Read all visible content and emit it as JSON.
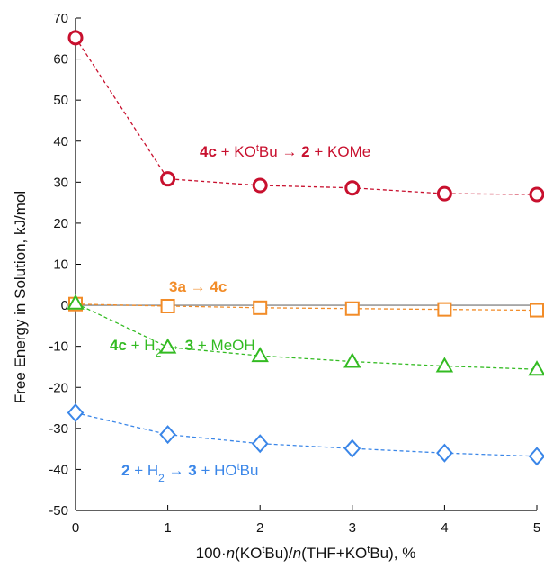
{
  "chart_data": {
    "type": "line",
    "xlabel": "100·n(KOᵗBu)/n(THF+KOᵗBu), %",
    "ylabel": "Free Energy in Solution, kJ/mol",
    "xlim": [
      0,
      5
    ],
    "ylim": [
      -50,
      70
    ],
    "x_ticks": [
      "0",
      "1",
      "2",
      "3",
      "4",
      "5"
    ],
    "y_ticks": [
      "70",
      "60",
      "50",
      "40",
      "30",
      "20",
      "10",
      "0",
      "-10",
      "-20",
      "-30",
      "-40",
      "-50"
    ],
    "grid": false,
    "x": [
      0,
      1,
      2,
      3,
      4,
      5
    ],
    "series": [
      {
        "name": "4c + KOᵗBu → 2 + KOMe",
        "color": "#c8102e",
        "marker": "circle",
        "values": [
          65.2,
          30.8,
          29.2,
          28.6,
          27.2,
          27.0
        ]
      },
      {
        "name": "3a → 4c",
        "color": "#f28c28",
        "marker": "square",
        "values": [
          0.3,
          -0.2,
          -0.6,
          -0.8,
          -1.0,
          -1.2
        ]
      },
      {
        "name": "4c + H₂ → 3 + MeOH",
        "color": "#33bb22",
        "marker": "triangle",
        "values": [
          0.5,
          -10.2,
          -12.3,
          -13.7,
          -14.8,
          -15.6
        ]
      },
      {
        "name": "2 + H₂ → 3 + HOᵗBu",
        "color": "#3a86e8",
        "marker": "diamond",
        "values": [
          -26.2,
          -31.5,
          -33.7,
          -34.9,
          -36.0,
          -36.8
        ]
      }
    ],
    "zero_line": {
      "value": 0,
      "color": "#888888"
    }
  }
}
